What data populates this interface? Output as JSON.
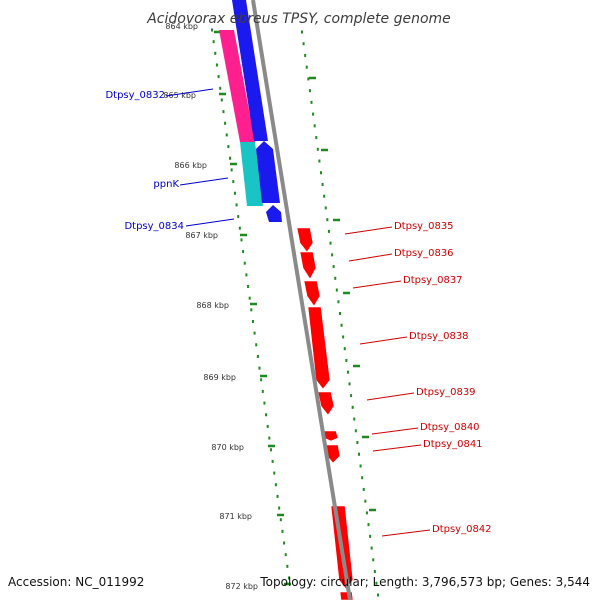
{
  "title": "Acidovorax ebreus TPSY, complete genome",
  "accession": "Accession: NC_011992",
  "topology": "Topology: circular; Length: 3,796,573 bp; Genes: 3,544",
  "colors": {
    "backbone": "#8a8a8a",
    "tick": "#1f8a1f",
    "forward_label": "#0000cc",
    "reverse_label": "#cc0000",
    "reverse_gene": "#ff0000",
    "forward_gene": "#1a1aee",
    "pink_gene": "#ff1f8f",
    "cyan_gene": "#19c4c4"
  },
  "scale": {
    "ticks_kbp": [
      "864 kbp",
      "865 kbp",
      "866 kbp",
      "867 kbp",
      "868 kbp",
      "869 kbp",
      "870 kbp",
      "871 kbp",
      "872 kbp"
    ]
  },
  "forward_genes": [
    {
      "label": "Dtpsy_0832",
      "color": "pink"
    },
    {
      "label": "ppnK",
      "color": "cyan"
    },
    {
      "label": "Dtpsy_0834",
      "color": "blue"
    }
  ],
  "reverse_genes": [
    {
      "label": "Dtpsy_0835"
    },
    {
      "label": "Dtpsy_0836"
    },
    {
      "label": "Dtpsy_0837"
    },
    {
      "label": "Dtpsy_0838"
    },
    {
      "label": "Dtpsy_0839"
    },
    {
      "label": "Dtpsy_0840"
    },
    {
      "label": "Dtpsy_0841"
    },
    {
      "label": "Dtpsy_0842"
    }
  ]
}
